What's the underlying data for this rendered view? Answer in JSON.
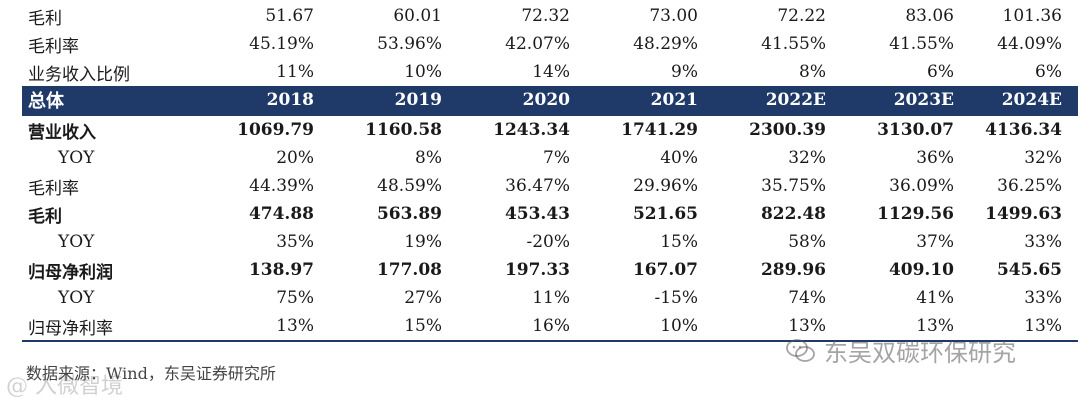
{
  "table": {
    "rows": [
      {
        "label": "毛利",
        "values": [
          "51.67",
          "60.01",
          "72.32",
          "73.00",
          "72.22",
          "83.06",
          "101.36"
        ],
        "kind": "plain"
      },
      {
        "label": "毛利率",
        "values": [
          "45.19%",
          "53.96%",
          "42.07%",
          "48.29%",
          "41.55%",
          "41.55%",
          "44.09%"
        ],
        "kind": "plain"
      },
      {
        "label": "业务收入比例",
        "values": [
          "11%",
          "10%",
          "14%",
          "9%",
          "8%",
          "6%",
          "6%"
        ],
        "kind": "plain"
      },
      {
        "label": "总体",
        "values": [
          "2018",
          "2019",
          "2020",
          "2021",
          "2022E",
          "2023E",
          "2024E"
        ],
        "kind": "header"
      },
      {
        "label": "营业收入",
        "values": [
          "1069.79",
          "1160.58",
          "1243.34",
          "1741.29",
          "2300.39",
          "3130.07",
          "4136.34"
        ],
        "kind": "bold"
      },
      {
        "label": "YOY",
        "values": [
          "20%",
          "8%",
          "7%",
          "40%",
          "32%",
          "36%",
          "32%"
        ],
        "kind": "indent"
      },
      {
        "label": "毛利率",
        "values": [
          "44.39%",
          "48.59%",
          "36.47%",
          "29.96%",
          "35.75%",
          "36.09%",
          "36.25%"
        ],
        "kind": "plain"
      },
      {
        "label": "毛利",
        "values": [
          "474.88",
          "563.89",
          "453.43",
          "521.65",
          "822.48",
          "1129.56",
          "1499.63"
        ],
        "kind": "bold"
      },
      {
        "label": "YOY",
        "values": [
          "35%",
          "19%",
          "-20%",
          "15%",
          "58%",
          "37%",
          "33%"
        ],
        "kind": "indent"
      },
      {
        "label": "归母净利润",
        "values": [
          "138.97",
          "177.08",
          "197.33",
          "167.07",
          "289.96",
          "409.10",
          "545.65"
        ],
        "kind": "bold"
      },
      {
        "label": "YOY",
        "values": [
          "75%",
          "27%",
          "11%",
          "-15%",
          "74%",
          "41%",
          "33%"
        ],
        "kind": "indent"
      },
      {
        "label": "归母净利率",
        "values": [
          "13%",
          "15%",
          "16%",
          "10%",
          "13%",
          "13%",
          "13%"
        ],
        "kind": "plain"
      }
    ]
  },
  "source_note": "数据来源：Wind，东吴证券研究所",
  "brand": {
    "text": "东吴双碳环保研究",
    "icon": "wechat-icon"
  },
  "watermark": "@ 入微智境",
  "colors": {
    "header_bg": "#1f3a68",
    "header_text": "#ffffff"
  }
}
